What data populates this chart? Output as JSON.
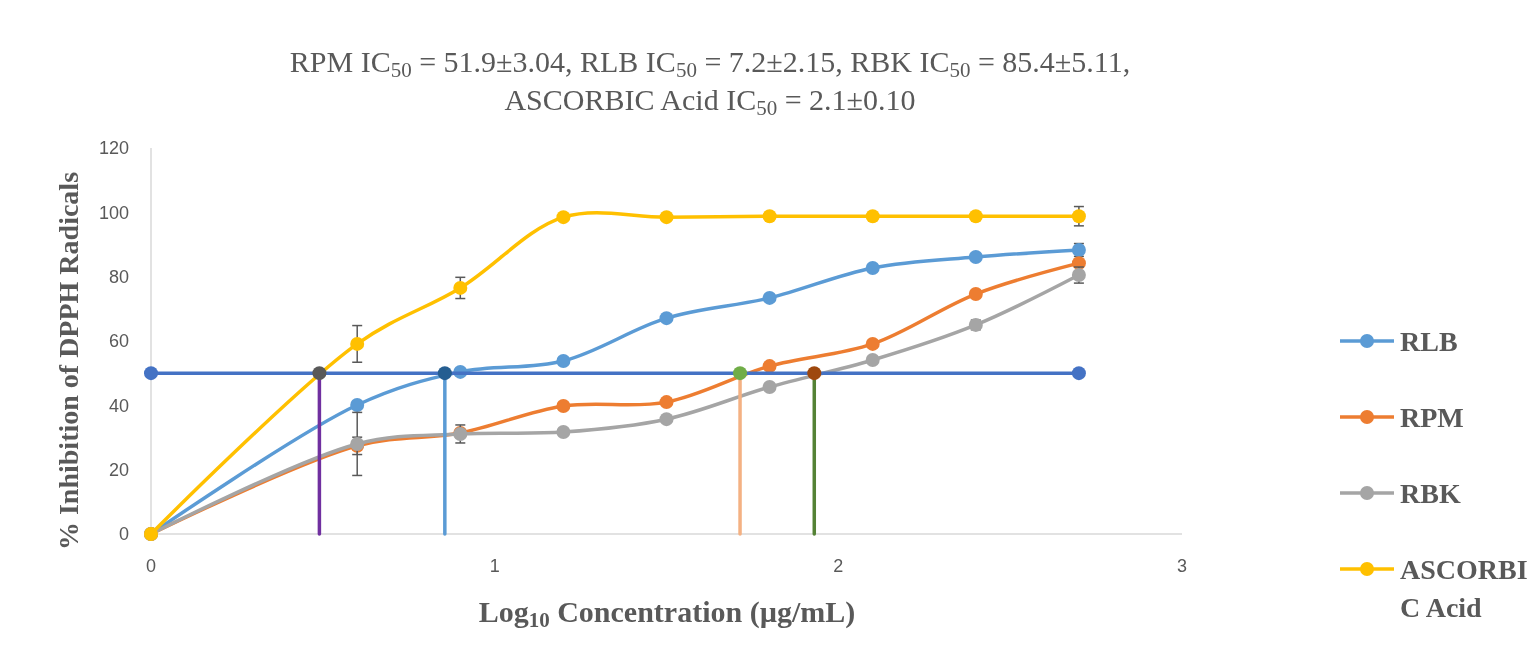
{
  "chart_data": {
    "type": "line",
    "title": "RPM IC$_{50}$ = 51.9±3.04, RLB IC$_{50}$ = 7.2±2.15, RBK IC$_{50}$ = 85.4±5.11, ASCORBIC Acid IC$_{50}$ = 2.1±0.10",
    "xlabel": "Log$_{10}$ Concentration (µg/mL)",
    "ylabel": "% Inhibition of DPPH Radicals",
    "x": [
      0,
      0.6,
      0.9,
      1.2,
      1.5,
      1.8,
      2.1,
      2.4,
      2.7
    ],
    "xlim": [
      0,
      3
    ],
    "xticks": [
      0,
      1,
      2,
      3
    ],
    "ylim": [
      0,
      120
    ],
    "yticks": [
      0,
      20,
      40,
      60,
      80,
      100,
      120
    ],
    "legend": "right",
    "marker": "circle",
    "series": [
      {
        "name": "RLB",
        "color": "#5b9bd5",
        "values": [
          0,
          40.1,
          50.4,
          53.8,
          67.1,
          73.4,
          82.7,
          86.1,
          88.3
        ],
        "errors": [
          null,
          null,
          null,
          null,
          null,
          null,
          null,
          null,
          2
        ]
      },
      {
        "name": "RPM",
        "color": "#ed7d31",
        "values": [
          0,
          27.4,
          31.4,
          39.8,
          41,
          52.2,
          59.1,
          74.6,
          84.2
        ],
        "errors": [
          null,
          2.7,
          null,
          null,
          null,
          null,
          null,
          null,
          null
        ]
      },
      {
        "name": "RBK",
        "color": "#a5a5a5",
        "values": [
          0,
          28,
          31.1,
          31.7,
          35.7,
          45.7,
          54.1,
          65,
          80.5
        ],
        "errors": [
          null,
          9.8,
          2.8,
          null,
          null,
          null,
          null,
          1.5,
          2.5
        ]
      },
      {
        "name": "ASCORBIC Acid",
        "color": "#ffc000",
        "values": [
          0,
          59.1,
          76.5,
          98.5,
          98.5,
          98.8,
          98.8,
          98.8,
          98.8
        ],
        "errors": [
          null,
          5.7,
          3.3,
          null,
          null,
          null,
          null,
          null,
          3
        ]
      },
      {
        "color": "#4472c4",
        "x": [
          0,
          2.7
        ],
        "values": [
          50,
          50
        ],
        "colors": [
          "#4472c4",
          "#4472c4"
        ]
      },
      {
        "color": "#7030a0",
        "x": [
          0.49,
          0.49
        ],
        "values": [
          0,
          50
        ],
        "colors": [
          null,
          "#595959"
        ]
      },
      {
        "color": "#5b9bd5",
        "x": [
          0.855,
          0.855
        ],
        "values": [
          0,
          50
        ],
        "colors": [
          null,
          "#255e91"
        ]
      },
      {
        "color": "#f4b183",
        "x": [
          1.714,
          1.714
        ],
        "values": [
          0,
          50
        ],
        "colors": [
          null,
          "#70ad47"
        ]
      },
      {
        "color": "#548235",
        "x": [
          1.93,
          1.93
        ],
        "values": [
          0,
          50
        ],
        "colors": [
          null,
          "#9e480e"
        ]
      }
    ]
  }
}
